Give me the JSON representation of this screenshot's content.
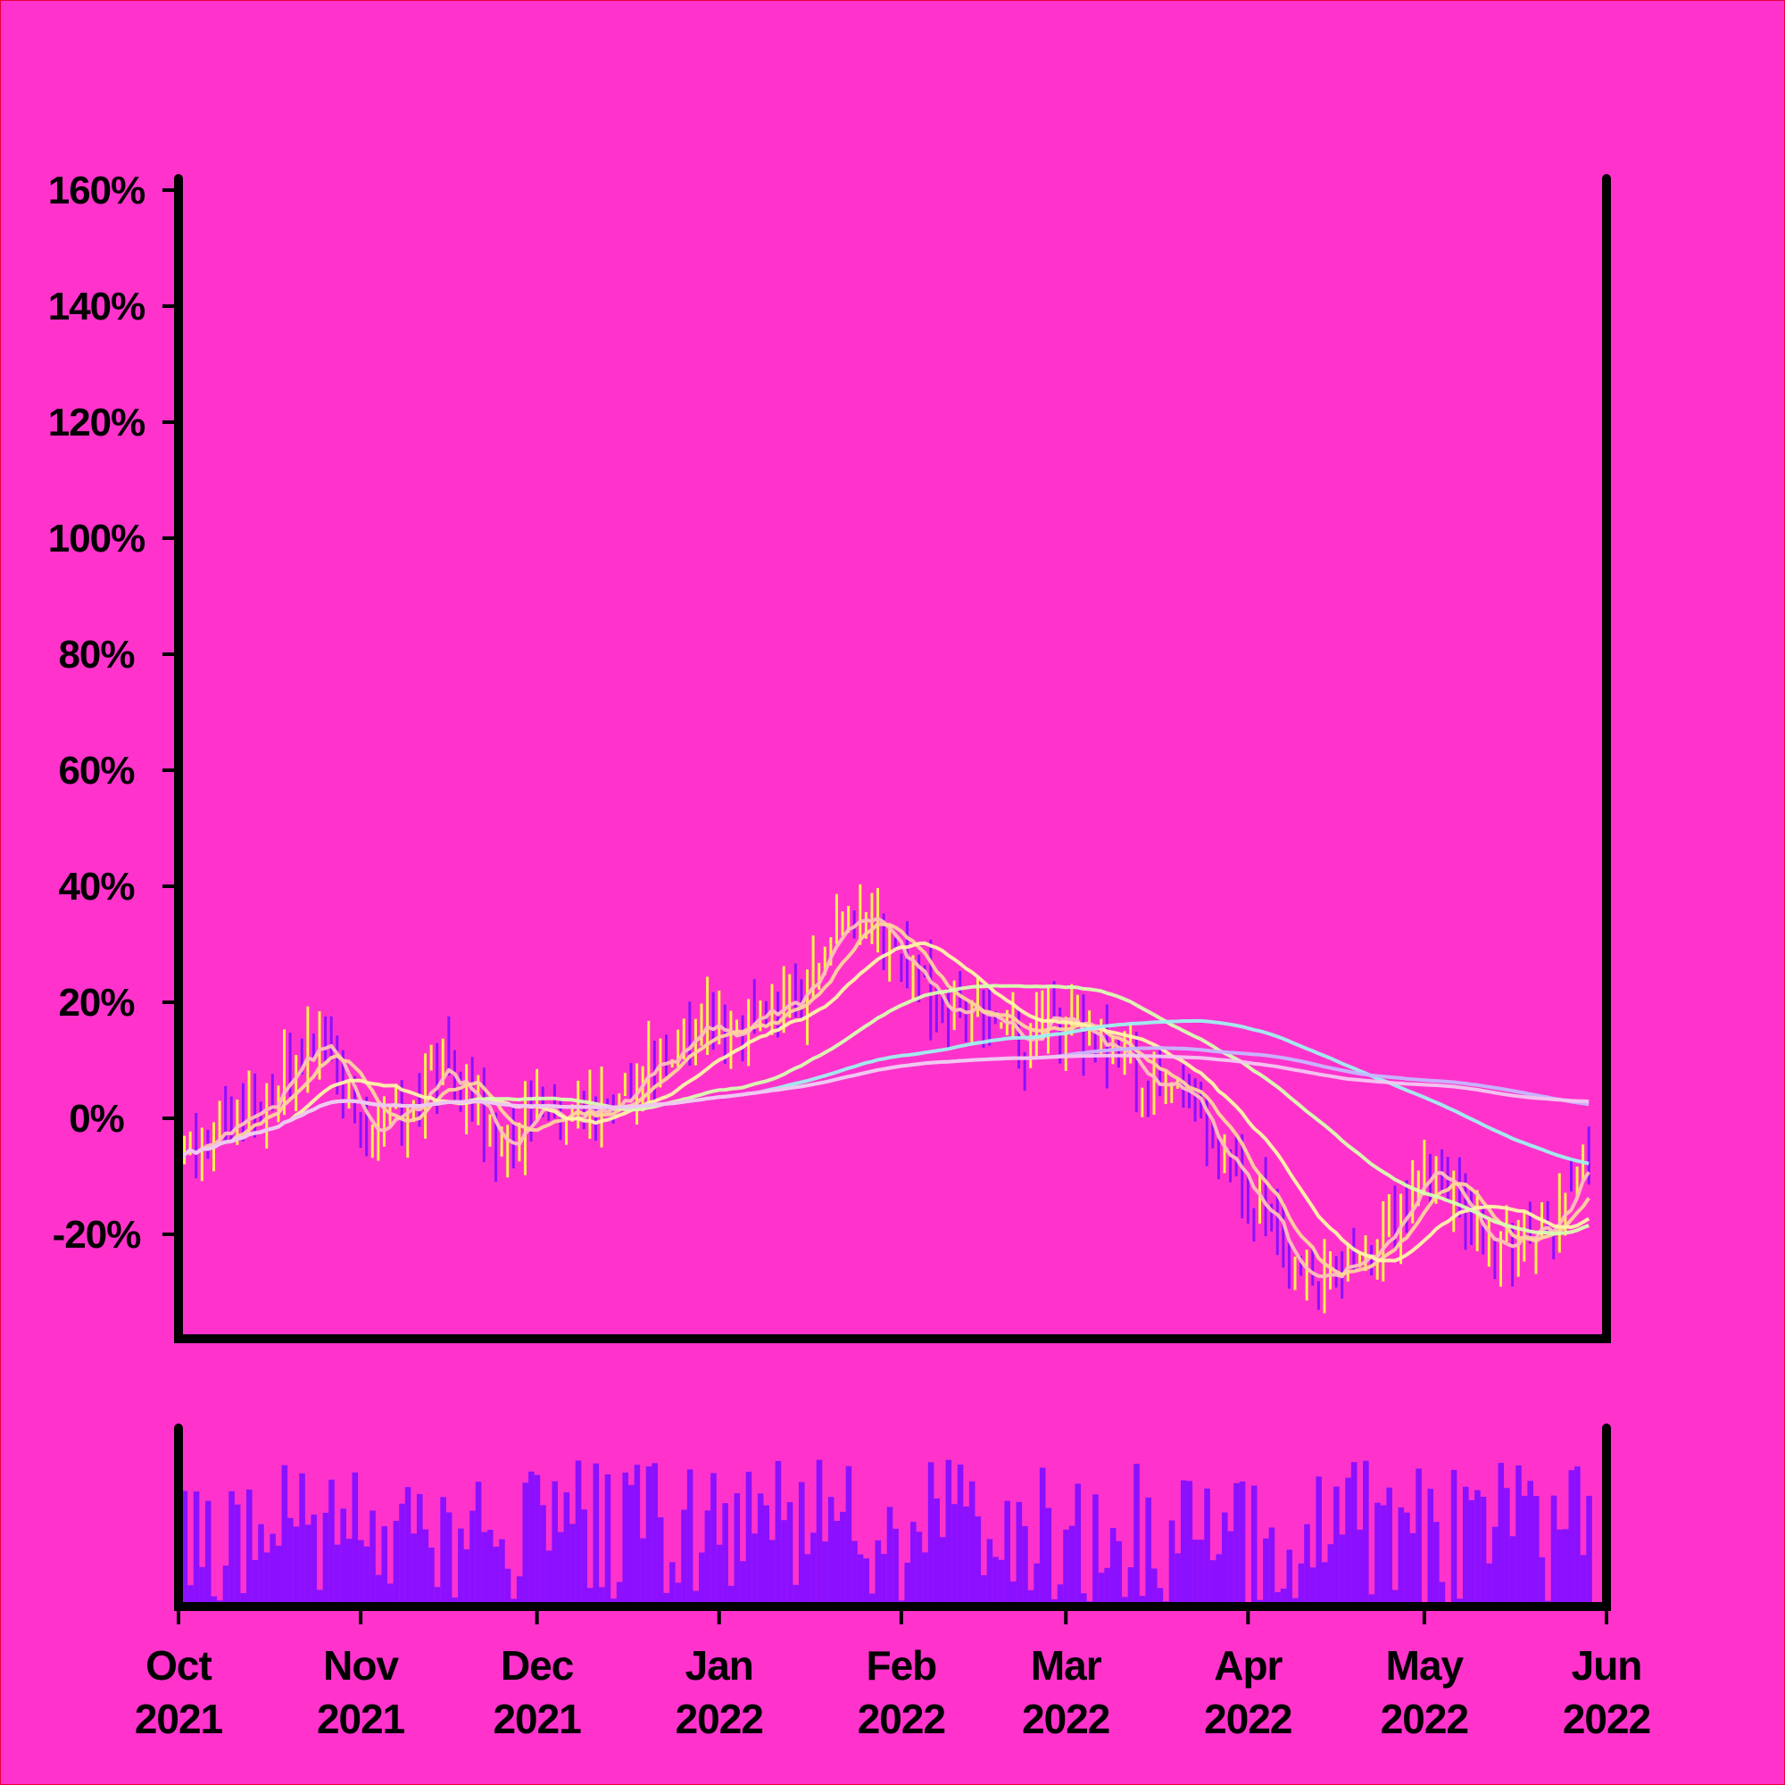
{
  "colors": {
    "background": "#FF33CC",
    "axis": "#000000",
    "up": "#FFF04A",
    "down": "#8B10FF",
    "volume": "#8B10FF"
  },
  "chart_data": {
    "type": "line",
    "subtype": "ohlc-with-moving-averages-and-volume",
    "title": "",
    "xlabel": "",
    "ylabel": "",
    "y_unit": "%",
    "grid": false,
    "legend": "none",
    "x_range": [
      "2021-10-01",
      "2022-06-01"
    ],
    "ylim": [
      -38,
      162
    ],
    "y_ticks": [
      -20,
      0,
      20,
      40,
      60,
      80,
      100,
      120,
      140,
      160
    ],
    "y_tick_labels": [
      "-20%",
      "0%",
      "20%",
      "40%",
      "60%",
      "80%",
      "100%",
      "120%",
      "140%",
      "160%"
    ],
    "x_ticks": [
      {
        "date": "2021-10-01",
        "month": "Oct",
        "year": "2021"
      },
      {
        "date": "2021-11-01",
        "month": "Nov",
        "year": "2021"
      },
      {
        "date": "2021-12-01",
        "month": "Dec",
        "year": "2021"
      },
      {
        "date": "2022-01-01",
        "month": "Jan",
        "year": "2022"
      },
      {
        "date": "2022-02-01",
        "month": "Feb",
        "year": "2022"
      },
      {
        "date": "2022-03-01",
        "month": "Mar",
        "year": "2022"
      },
      {
        "date": "2022-04-01",
        "month": "Apr",
        "year": "2022"
      },
      {
        "date": "2022-05-01",
        "month": "May",
        "year": "2022"
      },
      {
        "date": "2022-06-01",
        "month": "Jun",
        "year": "2022"
      }
    ],
    "price_anchors": [
      [
        "2021-10-01",
        -5
      ],
      [
        "2021-10-08",
        -3
      ],
      [
        "2021-10-15",
        2
      ],
      [
        "2021-10-20",
        10
      ],
      [
        "2021-10-24",
        13
      ],
      [
        "2021-10-30",
        4
      ],
      [
        "2021-11-04",
        -3
      ],
      [
        "2021-11-09",
        2
      ],
      [
        "2021-11-14",
        8
      ],
      [
        "2021-11-19",
        4
      ],
      [
        "2021-11-25",
        -4
      ],
      [
        "2021-12-01",
        2
      ],
      [
        "2021-12-06",
        -2
      ],
      [
        "2021-12-10",
        0
      ],
      [
        "2021-12-16",
        3
      ],
      [
        "2021-12-22",
        10
      ],
      [
        "2021-12-28",
        18
      ],
      [
        "2022-01-03",
        14
      ],
      [
        "2022-01-08",
        17
      ],
      [
        "2022-01-14",
        20
      ],
      [
        "2022-01-20",
        31
      ],
      [
        "2022-01-26",
        35
      ],
      [
        "2022-01-30",
        31
      ],
      [
        "2022-02-04",
        24
      ],
      [
        "2022-02-09",
        18
      ],
      [
        "2022-02-16",
        17
      ],
      [
        "2022-02-22",
        13
      ],
      [
        "2022-02-27",
        17
      ],
      [
        "2022-03-04",
        14
      ],
      [
        "2022-03-10",
        12
      ],
      [
        "2022-03-16",
        6
      ],
      [
        "2022-03-22",
        2
      ],
      [
        "2022-03-28",
        -8
      ],
      [
        "2022-04-03",
        -15
      ],
      [
        "2022-04-08",
        -25
      ],
      [
        "2022-04-12",
        -28
      ],
      [
        "2022-04-17",
        -26
      ],
      [
        "2022-04-21",
        -24
      ],
      [
        "2022-04-26",
        -18
      ],
      [
        "2022-05-01",
        -10
      ],
      [
        "2022-05-06",
        -11
      ],
      [
        "2022-05-10",
        -18
      ],
      [
        "2022-05-14",
        -22
      ],
      [
        "2022-05-18",
        -20
      ],
      [
        "2022-05-23",
        -17
      ],
      [
        "2022-05-28",
        -8
      ],
      [
        "2022-06-01",
        -3
      ]
    ],
    "ohlc_sample": {
      "count": 241,
      "volatility_pct": 6,
      "up_color": "#FFF04A",
      "down_color": "#8B10FF"
    },
    "moving_averages": [
      {
        "window": 5,
        "color": "#FFC2B8"
      },
      {
        "window": 10,
        "color": "#FFD49C"
      },
      {
        "window": 20,
        "color": "#FFF5A8"
      },
      {
        "window": 50,
        "color": "#D8FFB0"
      },
      {
        "window": 100,
        "color": "#9EF2EE"
      },
      {
        "window": 150,
        "color": "#C6B8FF"
      },
      {
        "window": 200,
        "color": "#F2C8F0"
      }
    ],
    "volume": {
      "min": 0.02,
      "max": 0.98
    }
  }
}
